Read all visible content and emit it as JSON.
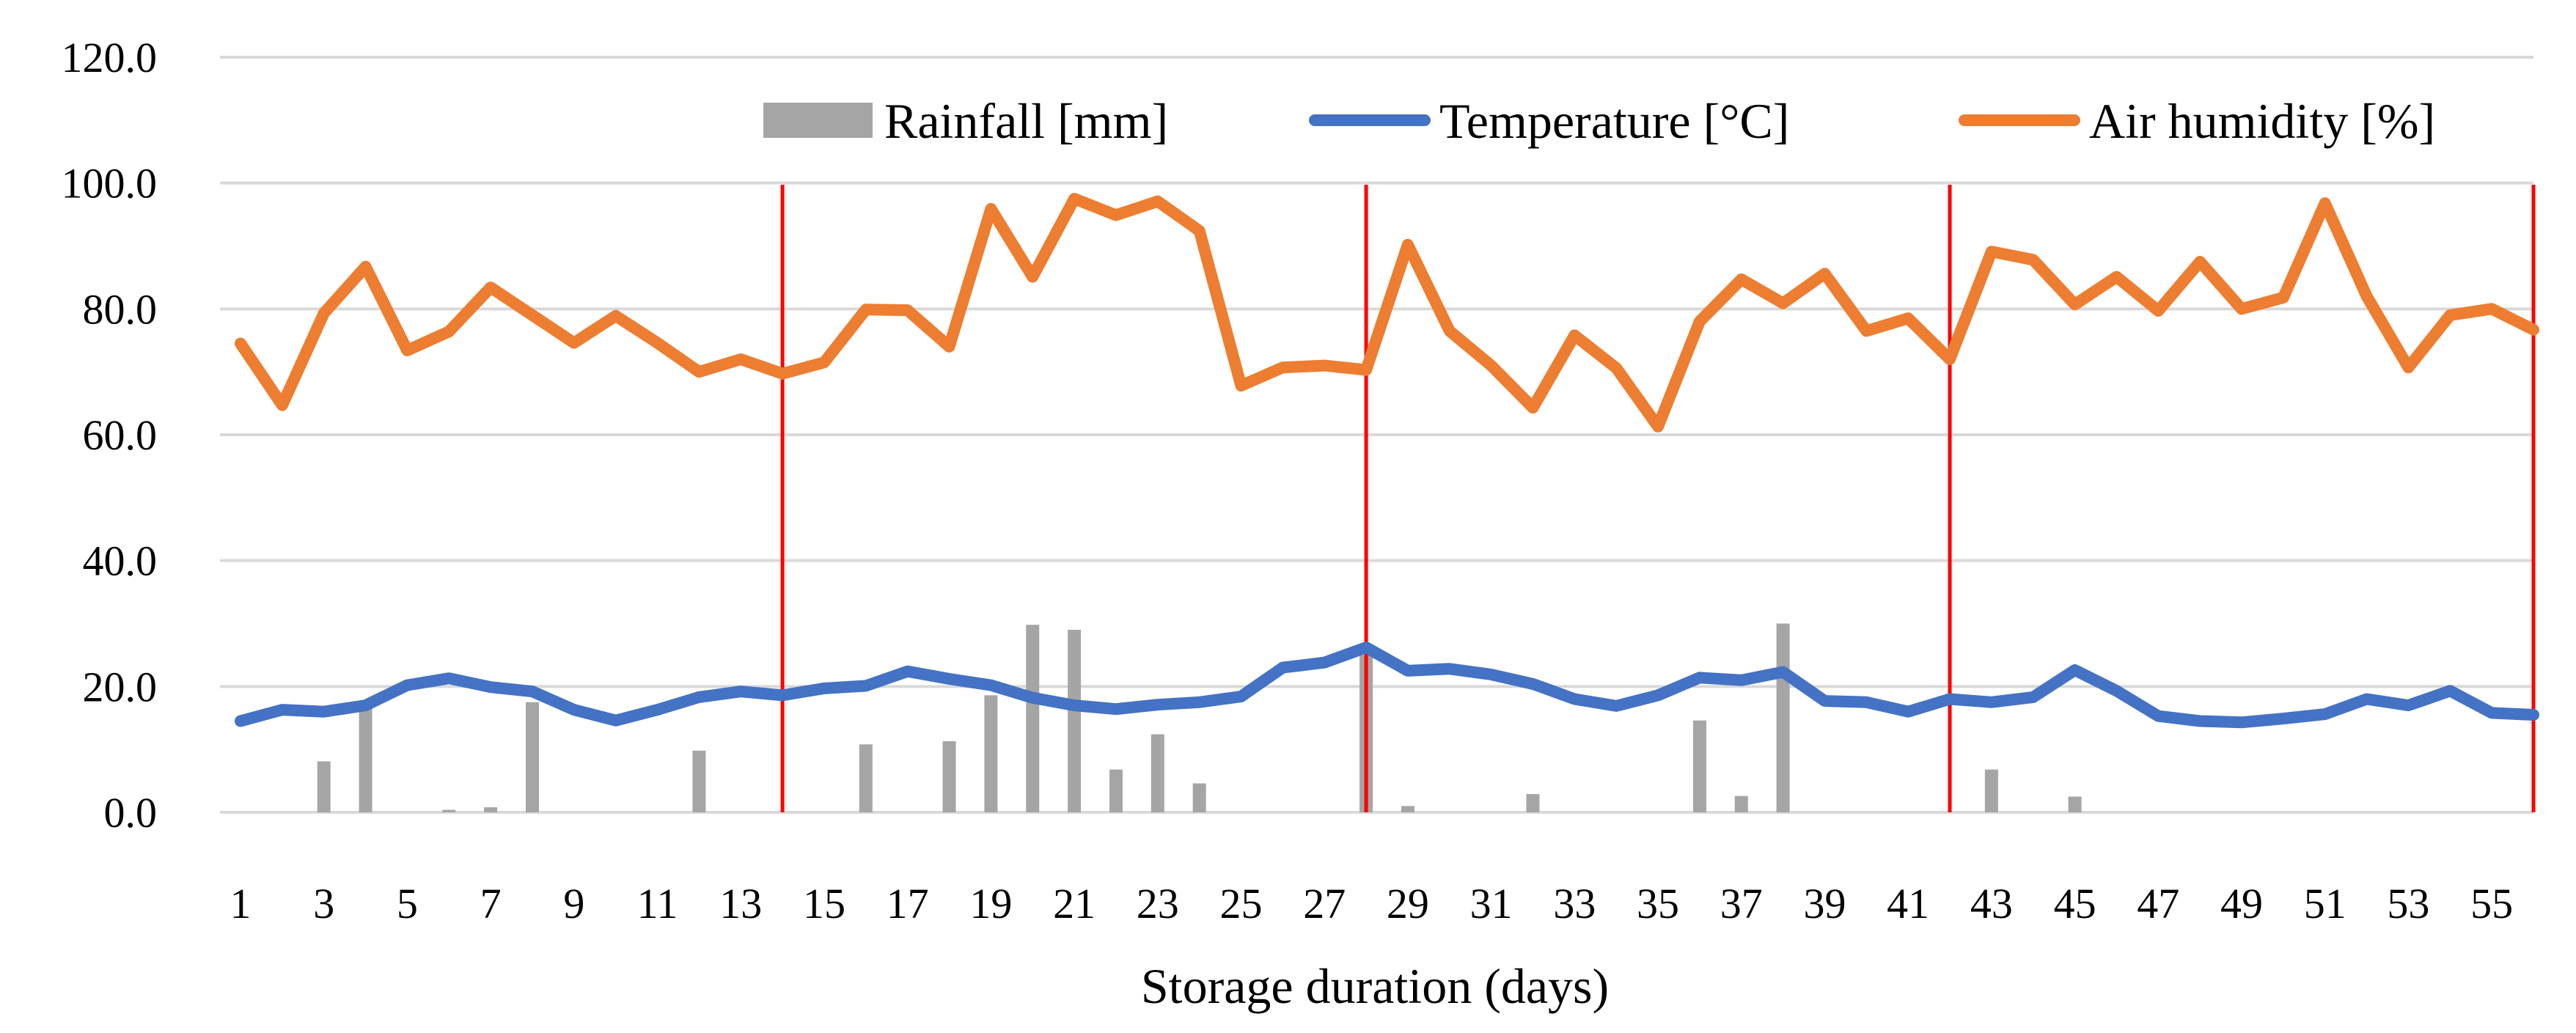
{
  "chart_data": {
    "type": "bar+line",
    "title": "",
    "xlabel": "Storage duration (days)",
    "ylabel": "",
    "ylim": [
      0,
      120
    ],
    "yticks": [
      "0.0",
      "20.0",
      "40.0",
      "60.0",
      "80.0",
      "100.0",
      "120.0"
    ],
    "ytick_values": [
      0,
      20,
      40,
      60,
      80,
      100,
      120
    ],
    "x": [
      1,
      2,
      3,
      4,
      5,
      6,
      7,
      8,
      9,
      10,
      11,
      12,
      13,
      14,
      15,
      16,
      17,
      18,
      19,
      20,
      21,
      22,
      23,
      24,
      25,
      26,
      27,
      28,
      29,
      30,
      31,
      32,
      33,
      34,
      35,
      36,
      37,
      38,
      39,
      40,
      41,
      42,
      43,
      44,
      45,
      46,
      47,
      48,
      49,
      50,
      51,
      52,
      53,
      54,
      55,
      56
    ],
    "xtick_labels": [
      "1",
      "3",
      "5",
      "7",
      "9",
      "11",
      "13",
      "15",
      "17",
      "19",
      "21",
      "23",
      "25",
      "27",
      "29",
      "31",
      "33",
      "35",
      "37",
      "39",
      "41",
      "43",
      "45",
      "47",
      "49",
      "51",
      "53",
      "55"
    ],
    "grid": "horizontal",
    "legend_position": "top-right",
    "series": [
      {
        "name": "Rainfall [mm]",
        "kind": "bar",
        "color": "#A5A5A5",
        "values": [
          0,
          0,
          8.1,
          16.8,
          0,
          0.4,
          0.8,
          17.5,
          0,
          0,
          0,
          9.8,
          0,
          0,
          0,
          10.8,
          0,
          11.3,
          18.6,
          29.8,
          29,
          6.8,
          12.4,
          4.6,
          0,
          0,
          0,
          25,
          1,
          0,
          0,
          2.9,
          0,
          0,
          0,
          14.6,
          2.6,
          30,
          0,
          0,
          0,
          0,
          6.8,
          0,
          2.5,
          0,
          0,
          0,
          0,
          0,
          0,
          0,
          0,
          0,
          0,
          0
        ]
      },
      {
        "name": "Temperature [°C]",
        "kind": "line",
        "color": "#4472C4",
        "values": [
          14.5,
          16.3,
          16,
          17,
          20.2,
          21.3,
          19.9,
          19.2,
          16.3,
          14.6,
          16.3,
          18.3,
          19.2,
          18.6,
          19.7,
          20.1,
          22.4,
          21.2,
          20.2,
          18.2,
          17,
          16.4,
          17.1,
          17.5,
          18.4,
          23,
          23.8,
          26.2,
          22.5,
          22.8,
          21.9,
          20.4,
          18,
          16.9,
          18.6,
          21.4,
          21,
          22.3,
          17.7,
          17.5,
          16,
          18,
          17.5,
          18.3,
          22.6,
          19.3,
          15.3,
          14.5,
          14.3,
          14.9,
          15.6,
          18,
          17,
          19.3,
          15.8,
          15.5
        ]
      },
      {
        "name": "Air humidity [%]",
        "kind": "line",
        "color": "#ED7D31",
        "values": [
          74.5,
          64.7,
          79.3,
          86.7,
          73.4,
          76.4,
          83.4,
          79,
          74.6,
          78.9,
          74.6,
          70,
          72,
          69.7,
          71.5,
          79.9,
          79.8,
          74,
          95.9,
          85.1,
          97.5,
          94.9,
          97.1,
          92.4,
          67.8,
          70.7,
          71,
          70.3,
          90.2,
          76.5,
          71,
          64.3,
          75.8,
          70.6,
          61.3,
          78,
          84.7,
          80.9,
          85.6,
          76.5,
          78.5,
          72,
          89.1,
          87.8,
          80.7,
          85.1,
          79.7,
          87.5,
          80,
          81.8,
          96.8,
          82,
          70.7,
          79,
          80,
          76.7
        ]
      }
    ],
    "annotations": [
      {
        "type": "vertical-line",
        "x": 14,
        "color": "#FF0000"
      },
      {
        "type": "vertical-line",
        "x": 28,
        "color": "#FF0000"
      },
      {
        "type": "vertical-line",
        "x": 42,
        "color": "#FF0000"
      },
      {
        "type": "vertical-line",
        "x": 56,
        "color": "#FF0000"
      }
    ]
  }
}
